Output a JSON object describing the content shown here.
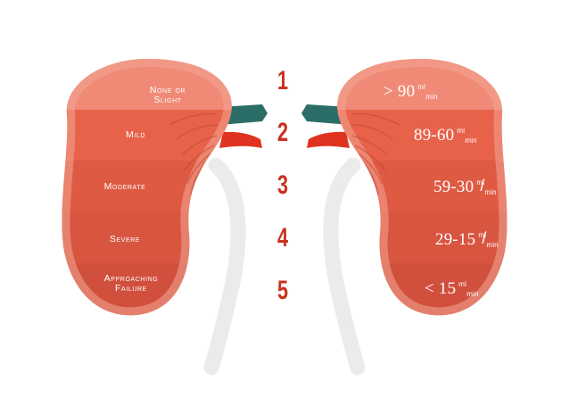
{
  "stages": [
    {
      "number": "1",
      "name_lines": [
        "None or",
        "Slight"
      ],
      "gfr_value": "> 90",
      "gfr_unit_top": "ml",
      "gfr_unit_bottom": "min"
    },
    {
      "number": "2",
      "name_lines": [
        "Mild"
      ],
      "gfr_value": "89-60",
      "gfr_unit_top": "ml",
      "gfr_unit_bottom": "min"
    },
    {
      "number": "3",
      "name_lines": [
        "Moderate"
      ],
      "gfr_value": "59-30",
      "gfr_unit_top": "ml",
      "gfr_unit_bottom": "min"
    },
    {
      "number": "4",
      "name_lines": [
        "Severe"
      ],
      "gfr_value": "29-15",
      "gfr_unit_top": "ml",
      "gfr_unit_bottom": "min"
    },
    {
      "number": "5",
      "name_lines": [
        "Approaching",
        "Failure"
      ],
      "gfr_value": "< 15",
      "gfr_unit_top": "ml",
      "gfr_unit_bottom": "min"
    }
  ],
  "colors": {
    "band_1": "#f08a76",
    "band_2": "#e8624a",
    "band_3": "#df5a43",
    "band_4": "#d85540",
    "band_5": "#d0503d",
    "kidney_rim": "#f3a594",
    "ureter": "#ebebeb",
    "vein": "#2b6e68",
    "artery": "#e0331f",
    "stage_number": "#c8321e"
  }
}
